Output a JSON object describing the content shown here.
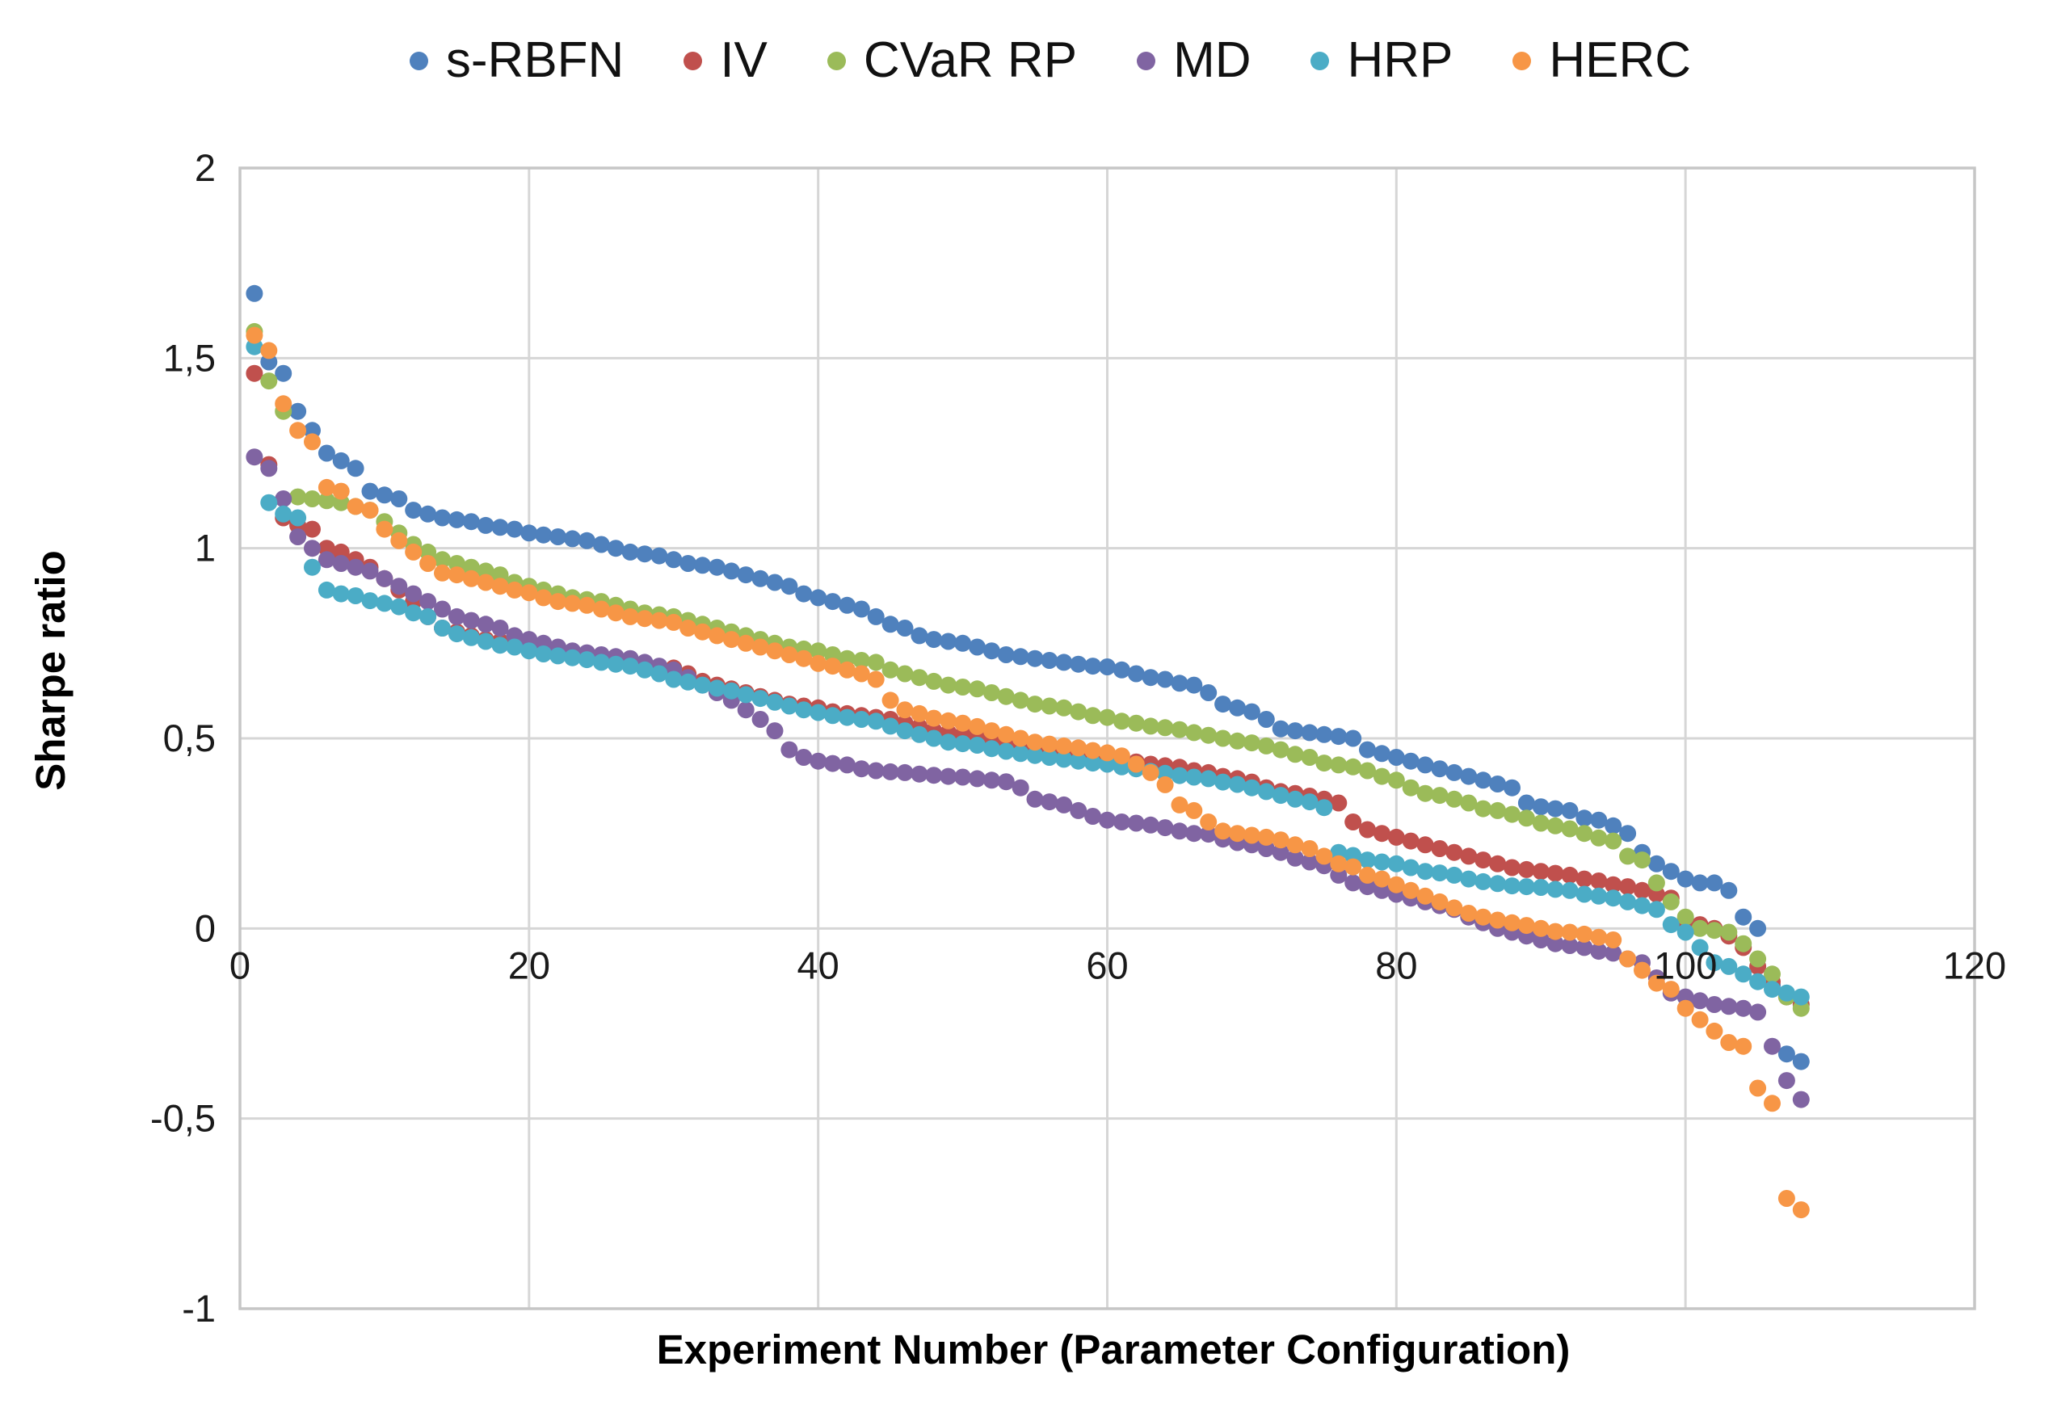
{
  "chart_data": {
    "type": "scatter",
    "title": "",
    "xlabel": "Experiment Number (Parameter Configuration)",
    "ylabel": "Sharpe ratio",
    "x_range": [
      0,
      120
    ],
    "y_range": [
      -1,
      2
    ],
    "grid": true,
    "legend_position": "top",
    "decimal_separator": ",",
    "x_ticks": [
      {
        "value": 0,
        "label": "0"
      },
      {
        "value": 20,
        "label": "20"
      },
      {
        "value": 40,
        "label": "40"
      },
      {
        "value": 60,
        "label": "60"
      },
      {
        "value": 80,
        "label": "80"
      },
      {
        "value": 100,
        "label": "100"
      },
      {
        "value": 120,
        "label": "120"
      }
    ],
    "y_ticks": [
      {
        "value": 2,
        "label": "2"
      },
      {
        "value": 1.5,
        "label": "1,5"
      },
      {
        "value": 1,
        "label": "1"
      },
      {
        "value": 0.5,
        "label": "0,5"
      },
      {
        "value": 0,
        "label": "0"
      },
      {
        "value": -0.5,
        "label": "-0,5"
      },
      {
        "value": -1,
        "label": "-1"
      }
    ],
    "x_start": 1,
    "x_step": 1,
    "marker": "circle",
    "series": [
      {
        "name": "s-RBFN",
        "color": "#4F81BD",
        "values": [
          1.67,
          1.49,
          1.46,
          1.36,
          1.31,
          1.25,
          1.23,
          1.21,
          1.15,
          1.14,
          1.13,
          1.1,
          1.09,
          1.08,
          1.075,
          1.07,
          1.06,
          1.055,
          1.05,
          1.04,
          1.035,
          1.03,
          1.025,
          1.02,
          1.01,
          1.0,
          0.99,
          0.985,
          0.98,
          0.97,
          0.96,
          0.955,
          0.95,
          0.94,
          0.93,
          0.92,
          0.91,
          0.9,
          0.88,
          0.87,
          0.86,
          0.85,
          0.84,
          0.82,
          0.8,
          0.79,
          0.77,
          0.76,
          0.755,
          0.75,
          0.74,
          0.73,
          0.72,
          0.715,
          0.71,
          0.705,
          0.7,
          0.695,
          0.69,
          0.688,
          0.68,
          0.67,
          0.66,
          0.655,
          0.645,
          0.64,
          0.62,
          0.59,
          0.58,
          0.57,
          0.55,
          0.525,
          0.52,
          0.515,
          0.51,
          0.505,
          0.5,
          0.47,
          0.46,
          0.45,
          0.44,
          0.43,
          0.42,
          0.41,
          0.4,
          0.39,
          0.38,
          0.37,
          0.33,
          0.32,
          0.315,
          0.31,
          0.29,
          0.285,
          0.27,
          0.25,
          0.2,
          0.17,
          0.15,
          0.13,
          0.12,
          0.12,
          0.1,
          0.03,
          0.0,
          -0.15,
          -0.33,
          -0.35
        ]
      },
      {
        "name": "IV",
        "color": "#C0504D",
        "values": [
          1.46,
          1.22,
          1.08,
          1.06,
          1.05,
          1.0,
          0.99,
          0.97,
          0.95,
          0.92,
          0.89,
          0.86,
          0.82,
          0.79,
          0.78,
          0.77,
          0.76,
          0.755,
          0.75,
          0.74,
          0.73,
          0.725,
          0.72,
          0.715,
          0.71,
          0.7,
          0.695,
          0.69,
          0.688,
          0.685,
          0.67,
          0.65,
          0.64,
          0.63,
          0.62,
          0.61,
          0.6,
          0.59,
          0.585,
          0.58,
          0.57,
          0.565,
          0.56,
          0.555,
          0.55,
          0.54,
          0.53,
          0.52,
          0.515,
          0.51,
          0.508,
          0.5,
          0.49,
          0.48,
          0.47,
          0.465,
          0.46,
          0.455,
          0.45,
          0.447,
          0.44,
          0.438,
          0.432,
          0.428,
          0.424,
          0.415,
          0.41,
          0.4,
          0.394,
          0.385,
          0.37,
          0.36,
          0.355,
          0.348,
          0.34,
          0.33,
          0.28,
          0.26,
          0.25,
          0.24,
          0.23,
          0.22,
          0.21,
          0.2,
          0.19,
          0.18,
          0.17,
          0.16,
          0.155,
          0.15,
          0.145,
          0.14,
          0.13,
          0.125,
          0.115,
          0.11,
          0.1,
          0.09,
          0.08,
          0.02,
          0.01,
          0.0,
          -0.02,
          -0.05,
          -0.1,
          -0.14,
          -0.18,
          -0.2
        ]
      },
      {
        "name": "CVaR RP",
        "color": "#9BBB59",
        "values": [
          1.57,
          1.44,
          1.36,
          1.135,
          1.13,
          1.125,
          1.12,
          1.11,
          1.1,
          1.07,
          1.04,
          1.01,
          0.99,
          0.97,
          0.96,
          0.95,
          0.94,
          0.93,
          0.91,
          0.9,
          0.89,
          0.88,
          0.87,
          0.865,
          0.86,
          0.85,
          0.84,
          0.83,
          0.825,
          0.82,
          0.81,
          0.8,
          0.79,
          0.78,
          0.77,
          0.76,
          0.75,
          0.74,
          0.735,
          0.73,
          0.72,
          0.71,
          0.705,
          0.7,
          0.68,
          0.67,
          0.66,
          0.65,
          0.64,
          0.635,
          0.63,
          0.62,
          0.61,
          0.6,
          0.59,
          0.585,
          0.58,
          0.57,
          0.56,
          0.555,
          0.545,
          0.54,
          0.532,
          0.528,
          0.523,
          0.515,
          0.508,
          0.5,
          0.493,
          0.488,
          0.48,
          0.47,
          0.458,
          0.45,
          0.435,
          0.43,
          0.425,
          0.415,
          0.4,
          0.39,
          0.37,
          0.355,
          0.35,
          0.34,
          0.33,
          0.315,
          0.31,
          0.3,
          0.29,
          0.277,
          0.27,
          0.262,
          0.25,
          0.238,
          0.23,
          0.19,
          0.18,
          0.12,
          0.07,
          0.03,
          0.0,
          -0.005,
          -0.01,
          -0.04,
          -0.08,
          -0.12,
          -0.18,
          -0.21
        ]
      },
      {
        "name": "MD",
        "color": "#8064A2",
        "values": [
          1.24,
          1.21,
          1.13,
          1.03,
          1.0,
          0.97,
          0.96,
          0.95,
          0.94,
          0.92,
          0.9,
          0.88,
          0.86,
          0.84,
          0.82,
          0.81,
          0.8,
          0.79,
          0.77,
          0.76,
          0.75,
          0.74,
          0.73,
          0.725,
          0.72,
          0.715,
          0.71,
          0.7,
          0.69,
          0.68,
          0.66,
          0.64,
          0.62,
          0.6,
          0.575,
          0.55,
          0.52,
          0.47,
          0.45,
          0.44,
          0.434,
          0.43,
          0.42,
          0.415,
          0.412,
          0.41,
          0.406,
          0.403,
          0.4,
          0.398,
          0.394,
          0.39,
          0.386,
          0.37,
          0.34,
          0.333,
          0.325,
          0.31,
          0.295,
          0.285,
          0.28,
          0.277,
          0.272,
          0.265,
          0.256,
          0.25,
          0.248,
          0.235,
          0.226,
          0.22,
          0.21,
          0.2,
          0.185,
          0.175,
          0.165,
          0.14,
          0.12,
          0.11,
          0.1,
          0.09,
          0.08,
          0.07,
          0.06,
          0.05,
          0.03,
          0.015,
          0.0,
          -0.01,
          -0.02,
          -0.03,
          -0.04,
          -0.045,
          -0.05,
          -0.06,
          -0.065,
          -0.08,
          -0.09,
          -0.13,
          -0.17,
          -0.18,
          -0.19,
          -0.2,
          -0.205,
          -0.21,
          -0.22,
          -0.31,
          -0.4,
          -0.45
        ]
      },
      {
        "name": "HRP",
        "color": "#4BACC6",
        "values": [
          1.53,
          1.12,
          1.09,
          1.08,
          0.95,
          0.89,
          0.88,
          0.875,
          0.862,
          0.855,
          0.846,
          0.83,
          0.82,
          0.79,
          0.775,
          0.765,
          0.755,
          0.745,
          0.74,
          0.73,
          0.722,
          0.717,
          0.712,
          0.707,
          0.7,
          0.695,
          0.69,
          0.68,
          0.67,
          0.655,
          0.648,
          0.64,
          0.632,
          0.625,
          0.615,
          0.605,
          0.595,
          0.585,
          0.575,
          0.568,
          0.56,
          0.555,
          0.55,
          0.545,
          0.532,
          0.52,
          0.51,
          0.5,
          0.49,
          0.486,
          0.482,
          0.473,
          0.466,
          0.46,
          0.455,
          0.45,
          0.445,
          0.44,
          0.435,
          0.432,
          0.425,
          0.42,
          0.413,
          0.408,
          0.402,
          0.398,
          0.394,
          0.385,
          0.379,
          0.37,
          0.36,
          0.35,
          0.34,
          0.333,
          0.318,
          0.2,
          0.192,
          0.18,
          0.175,
          0.17,
          0.16,
          0.15,
          0.146,
          0.14,
          0.13,
          0.123,
          0.118,
          0.112,
          0.11,
          0.108,
          0.103,
          0.1,
          0.09,
          0.085,
          0.08,
          0.07,
          0.06,
          0.05,
          0.01,
          -0.01,
          -0.05,
          -0.09,
          -0.1,
          -0.12,
          -0.14,
          -0.16,
          -0.17,
          -0.18
        ]
      },
      {
        "name": "HERC",
        "color": "#F79646",
        "values": [
          1.56,
          1.52,
          1.38,
          1.31,
          1.28,
          1.16,
          1.15,
          1.11,
          1.1,
          1.05,
          1.02,
          0.99,
          0.96,
          0.935,
          0.93,
          0.92,
          0.91,
          0.9,
          0.89,
          0.883,
          0.87,
          0.86,
          0.855,
          0.85,
          0.84,
          0.83,
          0.82,
          0.815,
          0.81,
          0.805,
          0.79,
          0.78,
          0.77,
          0.76,
          0.75,
          0.74,
          0.73,
          0.72,
          0.71,
          0.697,
          0.69,
          0.68,
          0.67,
          0.655,
          0.6,
          0.575,
          0.565,
          0.553,
          0.546,
          0.54,
          0.531,
          0.52,
          0.51,
          0.5,
          0.49,
          0.485,
          0.48,
          0.475,
          0.468,
          0.462,
          0.454,
          0.432,
          0.41,
          0.378,
          0.325,
          0.31,
          0.28,
          0.256,
          0.25,
          0.245,
          0.24,
          0.233,
          0.22,
          0.21,
          0.19,
          0.17,
          0.162,
          0.14,
          0.13,
          0.115,
          0.1,
          0.085,
          0.07,
          0.054,
          0.04,
          0.03,
          0.022,
          0.015,
          0.008,
          0.0,
          -0.008,
          -0.01,
          -0.015,
          -0.023,
          -0.03,
          -0.08,
          -0.11,
          -0.144,
          -0.16,
          -0.21,
          -0.24,
          -0.27,
          -0.3,
          -0.31,
          -0.42,
          -0.46,
          -0.71,
          -0.74
        ]
      }
    ]
  }
}
